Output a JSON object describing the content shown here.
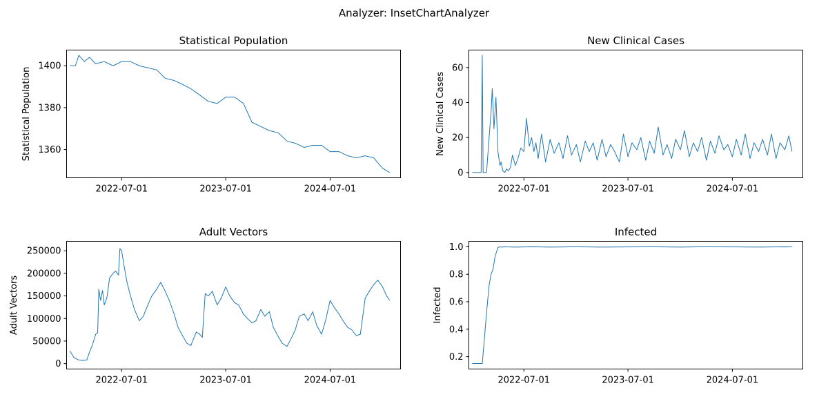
{
  "figure": {
    "suptitle": "Analyzer: InsetChartAnalyzer"
  },
  "chart_data": [
    {
      "type": "line",
      "title": "Statistical Population",
      "xlabel": "",
      "ylabel": "Statistical Population",
      "x_ticks": [
        "2022-07-01",
        "2023-07-01",
        "2024-07-01"
      ],
      "y_ticks": [
        "1360",
        "1380",
        "1400"
      ],
      "xlim": [
        "2021-12-20",
        "2025-03-05"
      ],
      "ylim": [
        1346.5,
        1407.5
      ],
      "color": "#1f77b4",
      "series": [
        {
          "x": [
            "2022-01-01",
            "2022-01-20",
            "2022-02-01",
            "2022-02-20",
            "2022-03-10",
            "2022-04-01",
            "2022-05-01",
            "2022-06-01",
            "2022-07-01",
            "2022-08-01",
            "2022-09-01",
            "2022-10-01",
            "2022-11-01",
            "2022-12-01",
            "2023-01-01",
            "2023-02-01",
            "2023-03-01",
            "2023-04-01",
            "2023-05-01",
            "2023-06-01",
            "2023-07-01",
            "2023-08-01",
            "2023-09-01",
            "2023-10-01",
            "2023-11-01",
            "2023-12-01",
            "2024-01-01",
            "2024-02-01",
            "2024-03-01",
            "2024-04-01",
            "2024-05-01",
            "2024-06-01",
            "2024-07-01",
            "2024-08-01",
            "2024-09-01",
            "2024-10-01",
            "2024-11-01",
            "2024-12-01",
            "2025-01-01",
            "2025-01-26"
          ],
          "values": [
            1400,
            1400,
            1405,
            1402,
            1404,
            1401,
            1402,
            1400,
            1402,
            1402,
            1400,
            1399,
            1398,
            1394,
            1393,
            1391,
            1389,
            1386,
            1383,
            1382,
            1385,
            1385,
            1382,
            1373,
            1371,
            1369,
            1368,
            1364,
            1363,
            1361,
            1362,
            1362,
            1359,
            1359,
            1357,
            1356,
            1357,
            1356,
            1351,
            1349
          ]
        }
      ]
    },
    {
      "type": "line",
      "title": "New Clinical Cases",
      "xlabel": "",
      "ylabel": "New Clinical Cases",
      "x_ticks": [
        "2022-07-01",
        "2023-07-01",
        "2024-07-01"
      ],
      "y_ticks": [
        "0",
        "20",
        "40",
        "60"
      ],
      "xlim": [
        "2021-12-20",
        "2025-03-05"
      ],
      "ylim": [
        -3,
        70
      ],
      "color": "#1f77b4",
      "series": [
        {
          "x": [
            "2022-01-01",
            "2022-02-01",
            "2022-02-05",
            "2022-02-08",
            "2022-02-12",
            "2022-02-20",
            "2022-03-01",
            "2022-03-08",
            "2022-03-12",
            "2022-03-18",
            "2022-03-25",
            "2022-04-01",
            "2022-04-08",
            "2022-04-12",
            "2022-04-18",
            "2022-04-25",
            "2022-05-01",
            "2022-05-08",
            "2022-05-15",
            "2022-05-22",
            "2022-06-01",
            "2022-06-10",
            "2022-06-20",
            "2022-07-01",
            "2022-07-10",
            "2022-07-20",
            "2022-07-28",
            "2022-08-05",
            "2022-08-12",
            "2022-08-20",
            "2022-09-01",
            "2022-09-15",
            "2022-10-01",
            "2022-10-15",
            "2022-11-01",
            "2022-11-15",
            "2022-12-01",
            "2022-12-15",
            "2023-01-01",
            "2023-01-15",
            "2023-02-01",
            "2023-02-15",
            "2023-03-01",
            "2023-03-15",
            "2023-04-01",
            "2023-04-15",
            "2023-05-01",
            "2023-05-15",
            "2023-06-01",
            "2023-06-15",
            "2023-07-01",
            "2023-07-15",
            "2023-08-01",
            "2023-08-15",
            "2023-09-01",
            "2023-09-15",
            "2023-10-01",
            "2023-10-15",
            "2023-11-01",
            "2023-11-15",
            "2023-12-01",
            "2023-12-15",
            "2024-01-01",
            "2024-01-15",
            "2024-02-01",
            "2024-02-15",
            "2024-03-01",
            "2024-03-15",
            "2024-04-01",
            "2024-04-15",
            "2024-05-01",
            "2024-05-15",
            "2024-06-01",
            "2024-06-15",
            "2024-07-01",
            "2024-07-15",
            "2024-08-01",
            "2024-08-15",
            "2024-09-01",
            "2024-09-15",
            "2024-10-01",
            "2024-10-15",
            "2024-11-01",
            "2024-11-15",
            "2024-12-01",
            "2024-12-15",
            "2025-01-01",
            "2025-01-15",
            "2025-01-26"
          ],
          "values": [
            0,
            0,
            67,
            0,
            0,
            0,
            20,
            35,
            48,
            25,
            43,
            12,
            4,
            6,
            1,
            0,
            2,
            1,
            3,
            10,
            4,
            8,
            14,
            12,
            31,
            15,
            20,
            12,
            17,
            8,
            22,
            6,
            19,
            11,
            17,
            8,
            21,
            10,
            16,
            6,
            18,
            12,
            17,
            7,
            19,
            9,
            16,
            12,
            6,
            22,
            9,
            17,
            13,
            20,
            7,
            18,
            11,
            26,
            10,
            16,
            8,
            19,
            13,
            24,
            9,
            17,
            12,
            20,
            7,
            18,
            11,
            21,
            13,
            16,
            9,
            19,
            10,
            22,
            8,
            17,
            12,
            19,
            10,
            22,
            8,
            17,
            13,
            21,
            12
          ]
        }
      ]
    },
    {
      "type": "line",
      "title": "Adult Vectors",
      "xlabel": "",
      "ylabel": "Adult Vectors",
      "x_ticks": [
        "2022-07-01",
        "2023-07-01",
        "2024-07-01"
      ],
      "y_ticks": [
        "0",
        "50000",
        "100000",
        "150000",
        "200000",
        "250000"
      ],
      "xlim": [
        "2021-12-20",
        "2025-03-05"
      ],
      "ylim": [
        -12000,
        271000
      ],
      "color": "#1f77b4",
      "series": [
        {
          "x": [
            "2022-01-01",
            "2022-01-15",
            "2022-02-01",
            "2022-02-15",
            "2022-03-01",
            "2022-03-10",
            "2022-03-20",
            "2022-04-01",
            "2022-04-08",
            "2022-04-12",
            "2022-04-18",
            "2022-04-25",
            "2022-05-01",
            "2022-05-10",
            "2022-05-20",
            "2022-06-01",
            "2022-06-10",
            "2022-06-20",
            "2022-06-25",
            "2022-07-01",
            "2022-07-10",
            "2022-07-20",
            "2022-08-01",
            "2022-08-15",
            "2022-09-01",
            "2022-09-15",
            "2022-10-01",
            "2022-10-15",
            "2022-11-01",
            "2022-11-15",
            "2022-12-01",
            "2022-12-15",
            "2023-01-01",
            "2023-01-15",
            "2023-02-01",
            "2023-02-15",
            "2023-03-01",
            "2023-03-10",
            "2023-03-20",
            "2023-04-01",
            "2023-04-10",
            "2023-04-20",
            "2023-05-01",
            "2023-05-15",
            "2023-06-01",
            "2023-06-15",
            "2023-07-01",
            "2023-07-15",
            "2023-08-01",
            "2023-08-15",
            "2023-09-01",
            "2023-09-15",
            "2023-10-01",
            "2023-10-15",
            "2023-11-01",
            "2023-11-15",
            "2023-12-01",
            "2023-12-15",
            "2024-01-01",
            "2024-01-15",
            "2024-02-01",
            "2024-02-15",
            "2024-03-01",
            "2024-03-15",
            "2024-04-01",
            "2024-04-15",
            "2024-05-01",
            "2024-05-15",
            "2024-06-01",
            "2024-06-15",
            "2024-07-01",
            "2024-07-15",
            "2024-08-01",
            "2024-08-15",
            "2024-09-01",
            "2024-09-15",
            "2024-10-01",
            "2024-10-15",
            "2024-11-01",
            "2024-11-15",
            "2024-12-01",
            "2024-12-15",
            "2025-01-01",
            "2025-01-15",
            "2025-01-26"
          ],
          "values": [
            28000,
            13000,
            8000,
            7000,
            8000,
            25000,
            40000,
            65000,
            68000,
            165000,
            140000,
            162000,
            130000,
            145000,
            190000,
            200000,
            205000,
            196000,
            255000,
            250000,
            215000,
            180000,
            150000,
            120000,
            95000,
            105000,
            130000,
            150000,
            165000,
            180000,
            160000,
            140000,
            110000,
            80000,
            60000,
            45000,
            40000,
            55000,
            70000,
            65000,
            58000,
            155000,
            150000,
            160000,
            130000,
            145000,
            170000,
            150000,
            135000,
            130000,
            110000,
            100000,
            90000,
            95000,
            120000,
            105000,
            115000,
            80000,
            60000,
            45000,
            38000,
            55000,
            75000,
            105000,
            110000,
            95000,
            115000,
            85000,
            65000,
            95000,
            140000,
            125000,
            110000,
            95000,
            80000,
            75000,
            62000,
            65000,
            145000,
            160000,
            175000,
            185000,
            170000,
            150000,
            140000
          ]
        }
      ]
    },
    {
      "type": "line",
      "title": "Infected",
      "xlabel": "",
      "ylabel": "Infected",
      "x_ticks": [
        "2022-07-01",
        "2023-07-01",
        "2024-07-01"
      ],
      "y_ticks": [
        "0.2",
        "0.4",
        "0.6",
        "0.8",
        "1.0"
      ],
      "xlim": [
        "2021-12-20",
        "2025-03-05"
      ],
      "ylim": [
        0.11,
        1.04
      ],
      "color": "#1f77b4",
      "series": [
        {
          "x": [
            "2022-01-01",
            "2022-01-20",
            "2022-02-05",
            "2022-02-12",
            "2022-02-20",
            "2022-03-01",
            "2022-03-08",
            "2022-03-15",
            "2022-03-22",
            "2022-04-01",
            "2022-04-10",
            "2022-04-15",
            "2022-04-20",
            "2022-05-01",
            "2022-06-01",
            "2022-08-01",
            "2022-10-01",
            "2023-01-01",
            "2023-04-01",
            "2023-07-01",
            "2023-10-01",
            "2024-01-01",
            "2024-04-01",
            "2024-07-01",
            "2024-10-01",
            "2025-01-01",
            "2025-01-26"
          ],
          "values": [
            0.15,
            0.15,
            0.15,
            0.32,
            0.52,
            0.72,
            0.8,
            0.84,
            0.93,
            0.995,
            1.0,
            0.997,
            1.0,
            0.999,
            0.998,
            1.0,
            0.998,
            1.0,
            0.998,
            0.999,
            1.0,
            0.998,
            1.0,
            0.999,
            0.998,
            1.0,
            0.999
          ]
        }
      ]
    }
  ]
}
